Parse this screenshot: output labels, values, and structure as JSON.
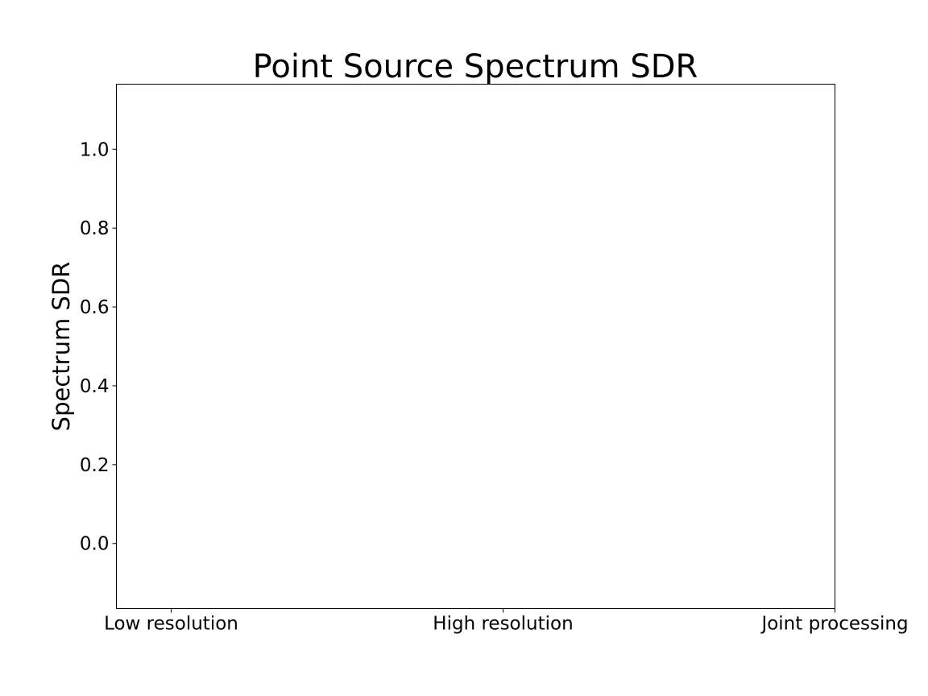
{
  "chart_data": {
    "type": "scatter",
    "title": "Point Source Spectrum SDR",
    "xlabel": "",
    "ylabel": "Spectrum SDR",
    "categories": [
      "Low resolution",
      "High resolution",
      "Joint processing"
    ],
    "series": [],
    "ylim": [
      -0.165,
      1.165
    ],
    "yticks": [
      0.0,
      0.2,
      0.4,
      0.6,
      0.8,
      1.0
    ],
    "ytick_labels": [
      "0.0",
      "0.2",
      "0.4",
      "0.6",
      "0.8",
      "1.0"
    ],
    "grid": false,
    "legend": "none"
  }
}
